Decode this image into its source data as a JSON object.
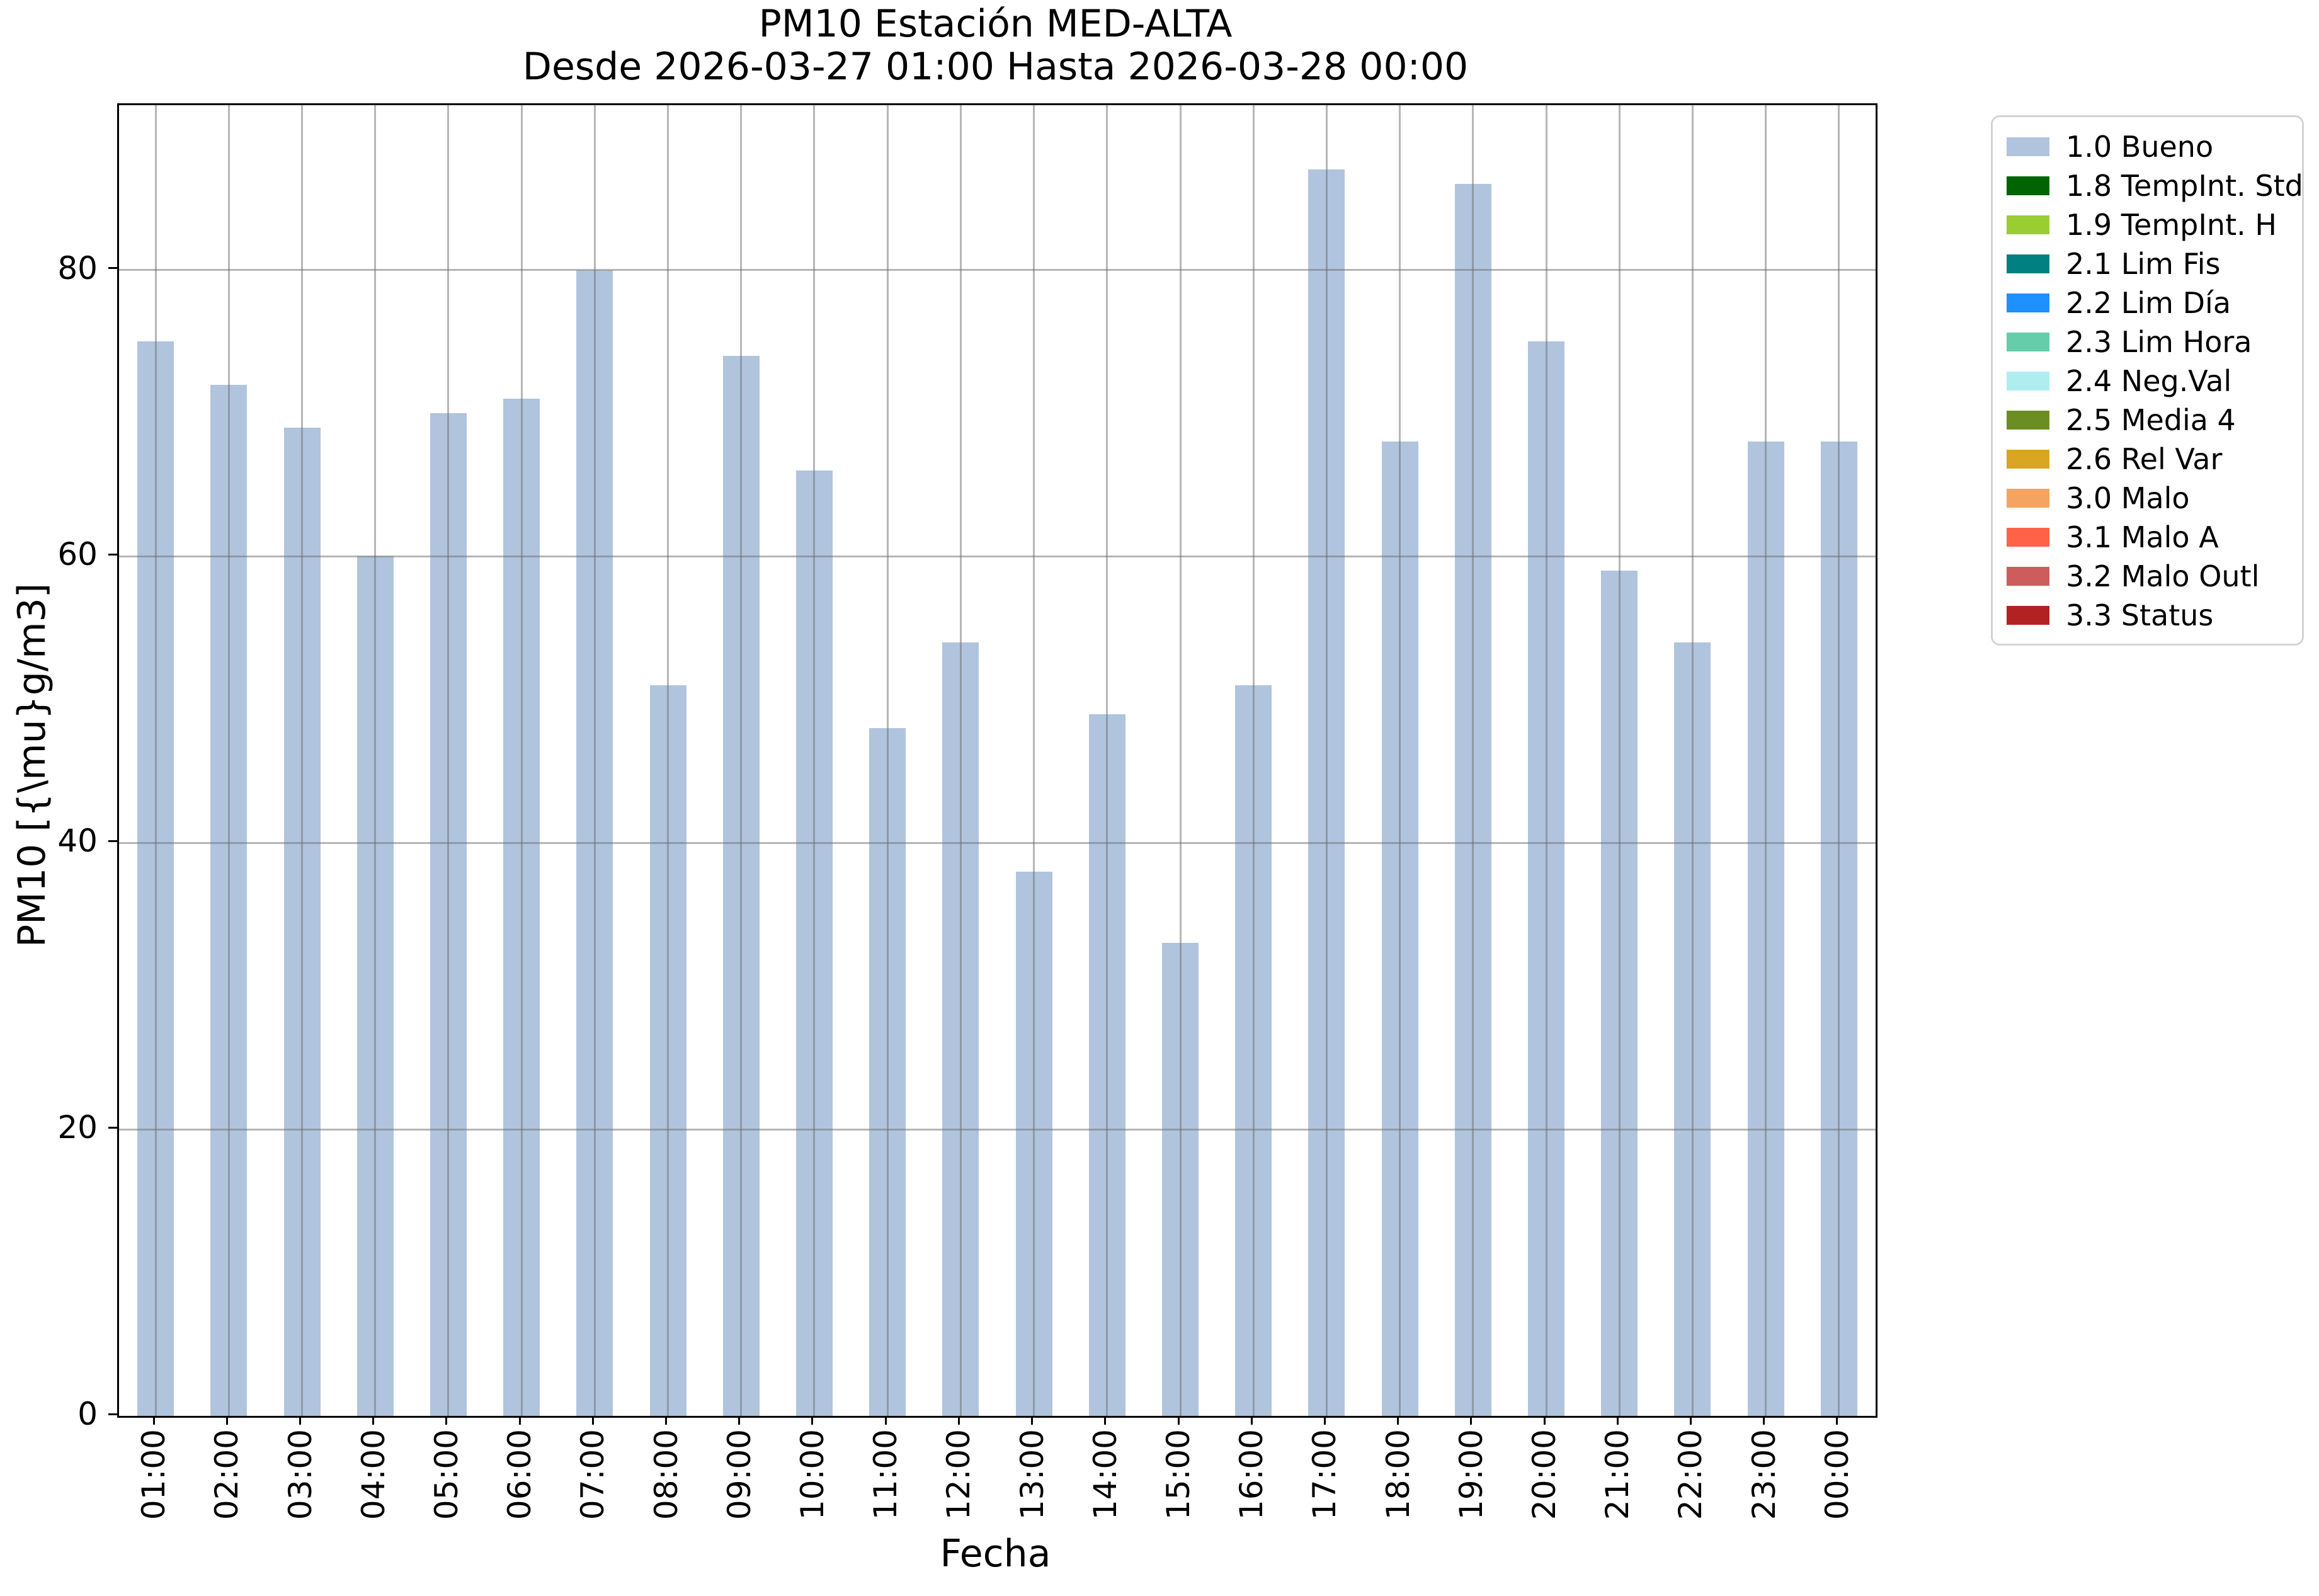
{
  "chart_data": {
    "type": "bar",
    "title_line1": "PM10 Estación MED-ALTA",
    "title_line2": "Desde 2026-03-27 01:00 Hasta 2026-03-28 00:00",
    "xlabel": "Fecha",
    "ylabel": "PM10 [{\\mu}g/m3]",
    "categories": [
      "01:00",
      "02:00",
      "03:00",
      "04:00",
      "05:00",
      "06:00",
      "07:00",
      "08:00",
      "09:00",
      "10:00",
      "11:00",
      "12:00",
      "13:00",
      "14:00",
      "15:00",
      "16:00",
      "17:00",
      "18:00",
      "19:00",
      "20:00",
      "21:00",
      "22:00",
      "23:00",
      "00:00"
    ],
    "values": [
      75,
      72,
      69,
      60,
      70,
      71,
      80,
      51,
      74,
      66,
      48,
      54,
      38,
      49,
      33,
      51,
      87,
      68,
      86,
      75,
      59,
      54,
      68,
      68
    ],
    "series_name": "1.0 Bueno",
    "bar_color": "#b0c4de",
    "ylim": [
      0,
      91.5
    ],
    "yticks": [
      0,
      20,
      40,
      60,
      80
    ],
    "grid": "on",
    "legend_position": "right-outside",
    "legend": [
      {
        "label": "1.0 Bueno",
        "color": "#b0c4de"
      },
      {
        "label": "1.8 TempInt. Std",
        "color": "#006400"
      },
      {
        "label": "1.9 TempInt. H",
        "color": "#9acd32"
      },
      {
        "label": "2.1 Lim Fis",
        "color": "#008080"
      },
      {
        "label": "2.2 Lim Día",
        "color": "#1e90ff"
      },
      {
        "label": "2.3 Lim Hora",
        "color": "#66cdaa"
      },
      {
        "label": "2.4 Neg.Val",
        "color": "#afeeee"
      },
      {
        "label": "2.5 Media 4",
        "color": "#6b8e23"
      },
      {
        "label": "2.6 Rel Var",
        "color": "#daa520"
      },
      {
        "label": "3.0 Malo",
        "color": "#f4a460"
      },
      {
        "label": "3.1 Malo A",
        "color": "#ff6347"
      },
      {
        "label": "3.2 Malo Outl",
        "color": "#cd5c5c"
      },
      {
        "label": "3.3 Status",
        "color": "#b22222"
      }
    ]
  }
}
